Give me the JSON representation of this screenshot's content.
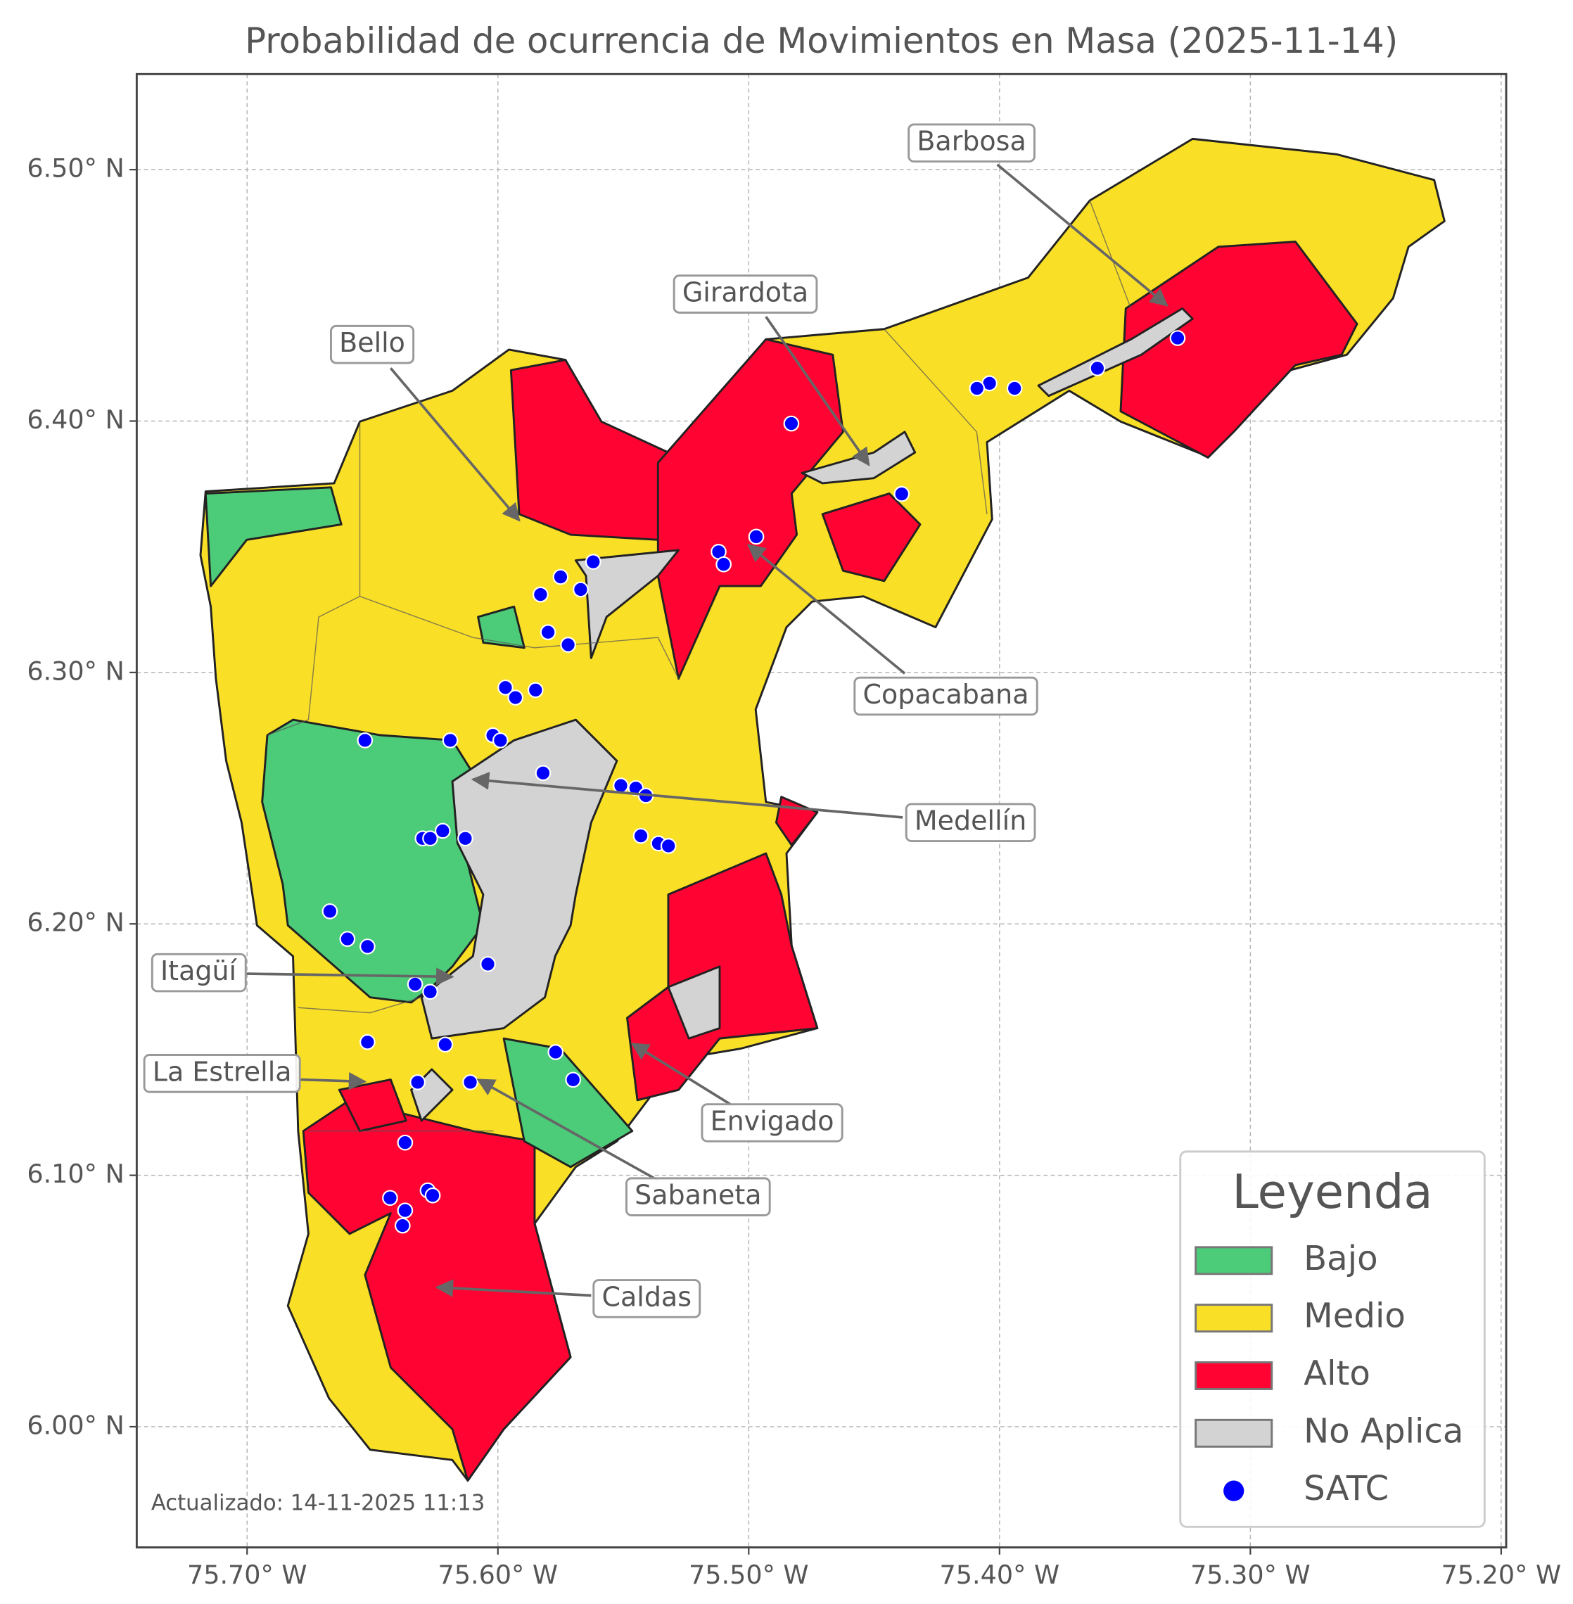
{
  "chart_data": {
    "type": "map",
    "title": "Probabilidad de ocurrencia de Movimientos en Masa (2025-11-14)",
    "xlim": [
      -75.744,
      -75.198
    ],
    "ylim": [
      5.952,
      6.538
    ],
    "xticks": [
      {
        "value": -75.7,
        "label": "75.70° W"
      },
      {
        "value": -75.6,
        "label": "75.60° W"
      },
      {
        "value": -75.5,
        "label": "75.50° W"
      },
      {
        "value": -75.4,
        "label": "75.40° W"
      },
      {
        "value": -75.3,
        "label": "75.30° W"
      },
      {
        "value": -75.2,
        "label": "75.20° W"
      }
    ],
    "yticks": [
      {
        "value": 6.0,
        "label": "6.00° N"
      },
      {
        "value": 6.1,
        "label": "6.10° N"
      },
      {
        "value": 6.2,
        "label": "6.20° N"
      },
      {
        "value": 6.3,
        "label": "6.30° N"
      },
      {
        "value": 6.4,
        "label": "6.40° N"
      },
      {
        "value": 6.5,
        "label": "6.50° N"
      }
    ],
    "grid": true,
    "annotations": [
      "Barbosa",
      "Girardota",
      "Bello",
      "Copacabana",
      "Medellín",
      "Itagüí",
      "La Estrella",
      "Envigado",
      "Sabaneta",
      "Caldas"
    ],
    "legend": {
      "title": "Leyenda",
      "corner": "lower right",
      "items": [
        {
          "name": "Bajo",
          "color": "#4ccb78"
        },
        {
          "name": "Medio",
          "color": "#fadf27"
        },
        {
          "name": "Alto",
          "color": "#ff0432"
        },
        {
          "name": "No Aplica",
          "color": "#d3d3d3"
        }
      ]
    },
    "series": [
      {
        "name": "SATC",
        "color": "#0000ff",
        "x": [
          -75.329,
          -75.361,
          -75.394,
          -75.404,
          -75.409,
          -75.483,
          -75.439,
          -75.497,
          -75.512,
          -75.51,
          -75.562,
          -75.575,
          -75.567,
          -75.583,
          -75.58,
          -75.572,
          -75.597,
          -75.593,
          -75.585,
          -75.653,
          -75.619,
          -75.602,
          -75.599,
          -75.582,
          -75.551,
          -75.545,
          -75.541,
          -75.543,
          -75.536,
          -75.532,
          -75.63,
          -75.627,
          -75.622,
          -75.613,
          -75.667,
          -75.66,
          -75.652,
          -75.604,
          -75.633,
          -75.627,
          -75.621,
          -75.652,
          -75.577,
          -75.57,
          -75.632,
          -75.611,
          -75.637,
          -75.643,
          -75.628,
          -75.626,
          -75.637,
          -75.638
        ],
        "values": [
          6.433,
          6.421,
          6.413,
          6.415,
          6.413,
          6.399,
          6.371,
          6.354,
          6.348,
          6.343,
          6.344,
          6.338,
          6.333,
          6.331,
          6.316,
          6.311,
          6.294,
          6.29,
          6.293,
          6.273,
          6.273,
          6.275,
          6.273,
          6.26,
          6.255,
          6.254,
          6.251,
          6.235,
          6.232,
          6.231,
          6.234,
          6.234,
          6.237,
          6.234,
          6.205,
          6.194,
          6.191,
          6.184,
          6.176,
          6.173,
          6.152,
          6.153,
          6.149,
          6.138,
          6.137,
          6.137,
          6.113,
          6.091,
          6.094,
          6.092,
          6.086,
          6.08
        ]
      }
    ],
    "footnote": "Actualizado: 14-11-2025 11:13"
  }
}
